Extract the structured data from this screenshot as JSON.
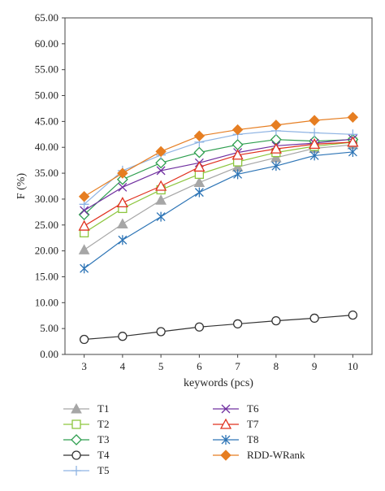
{
  "chart_data": {
    "type": "line",
    "xlabel": "keywords (pcs)",
    "ylabel": "F (%)",
    "x": [
      3,
      4,
      5,
      6,
      7,
      8,
      9,
      10
    ],
    "xlim": [
      2.5,
      10.5
    ],
    "ylim": [
      0,
      65
    ],
    "y_ticks": [
      "0.00",
      "5.00",
      "10.00",
      "15.00",
      "20.00",
      "25.00",
      "30.00",
      "35.00",
      "40.00",
      "45.00",
      "50.00",
      "55.00",
      "60.00",
      "65.00"
    ],
    "x_ticks": [
      "3",
      "4",
      "5",
      "6",
      "7",
      "8",
      "9",
      "10"
    ],
    "grid": false,
    "legend_position": "bottom",
    "series": [
      {
        "name": "T1",
        "marker": "triangle-filled",
        "color": "#a6a6a6",
        "values": [
          20.2,
          25.2,
          29.8,
          33.2,
          36.2,
          38.0,
          39.8,
          40.5
        ]
      },
      {
        "name": "T2",
        "marker": "square-open",
        "color": "#8dc63f",
        "values": [
          23.5,
          28.2,
          31.8,
          34.8,
          37.2,
          39.0,
          40.2,
          41.0
        ]
      },
      {
        "name": "T3",
        "marker": "diamond-open",
        "color": "#2e9e4f",
        "values": [
          27.0,
          33.8,
          37.0,
          39.0,
          40.5,
          41.5,
          41.2,
          41.5
        ]
      },
      {
        "name": "T4",
        "marker": "circle-open",
        "color": "#333333",
        "values": [
          2.9,
          3.5,
          4.4,
          5.3,
          5.9,
          6.5,
          7.0,
          7.6
        ]
      },
      {
        "name": "T5",
        "marker": "plus",
        "color": "#8fb4e3",
        "values": [
          29.0,
          35.5,
          38.5,
          41.0,
          42.5,
          43.2,
          42.8,
          42.5
        ]
      },
      {
        "name": "T6",
        "marker": "x",
        "color": "#7030a0",
        "values": [
          27.8,
          32.3,
          35.5,
          37.0,
          39.0,
          40.3,
          40.8,
          41.6
        ]
      },
      {
        "name": "T7",
        "marker": "triangle-open",
        "color": "#e0301e",
        "values": [
          24.8,
          29.3,
          32.5,
          36.2,
          38.5,
          39.7,
          40.6,
          41.0
        ]
      },
      {
        "name": "T8",
        "marker": "asterisk",
        "color": "#2e75b6",
        "values": [
          16.6,
          22.1,
          26.6,
          31.3,
          34.8,
          36.4,
          38.4,
          39.1
        ]
      },
      {
        "name": "RDD-WRank",
        "marker": "diamond-filled",
        "color": "#e67e22",
        "values": [
          30.5,
          35.0,
          39.2,
          42.2,
          43.4,
          44.3,
          45.2,
          45.8
        ]
      }
    ]
  }
}
